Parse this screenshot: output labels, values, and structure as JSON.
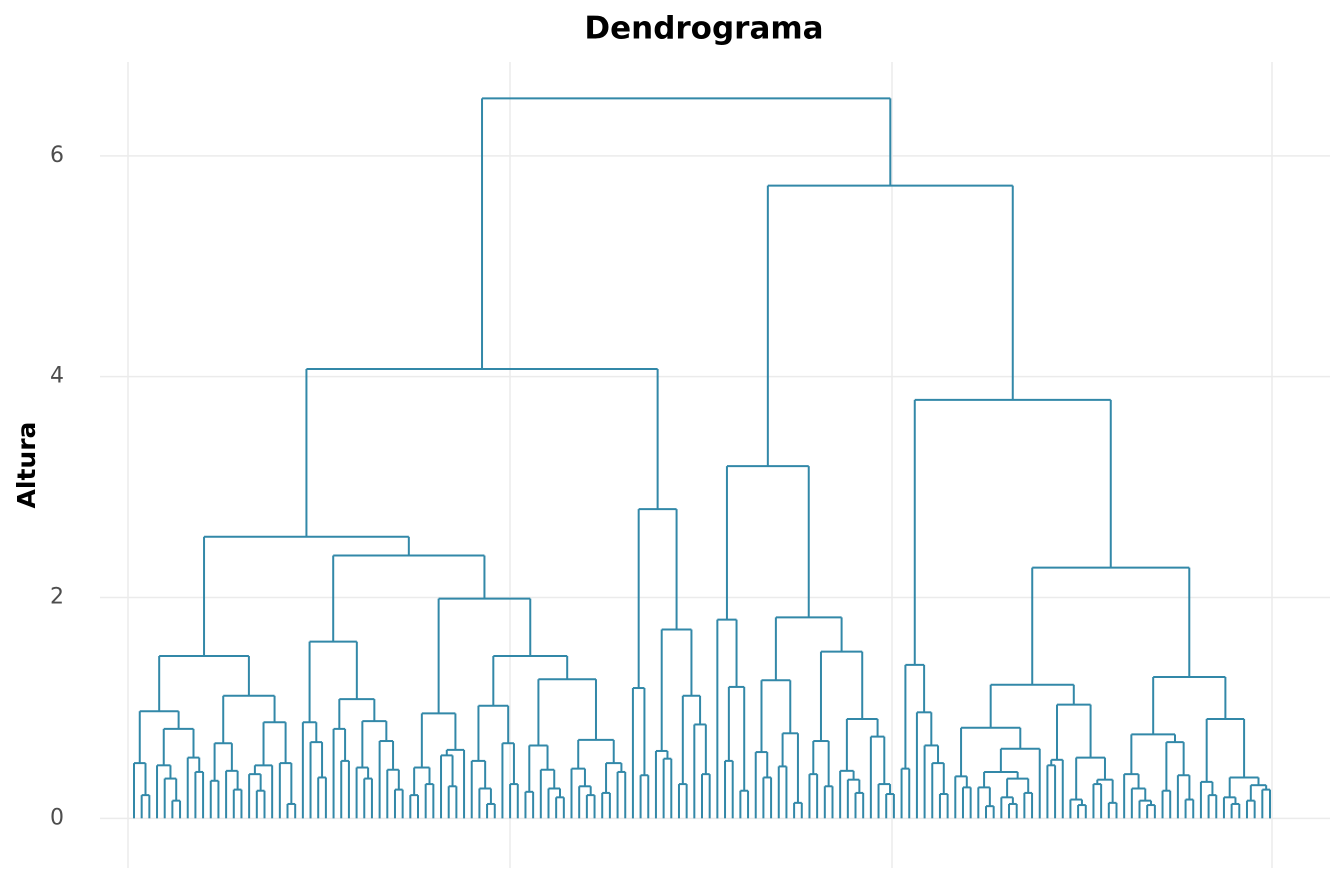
{
  "chart_data": {
    "type": "dendrogram",
    "title": "Dendrograma",
    "y_label": "Altura",
    "color": "#3288a8",
    "ylim": [
      -0.45,
      6.85
    ],
    "yticks": [
      0,
      2,
      4,
      6
    ],
    "grid": true,
    "tree": [
      6.52,
      [
        4.07,
        [
          2.55,
          [
            1.47,
            [
              0.97,
              [
                0.5,
                0,
                [
                  0.21,
                  0,
                  0
                ]
              ],
              [
                0.81,
                [
                  0.48,
                  0,
                  [
                    0.36,
                    0,
                    [
                      0.16,
                      0,
                      0
                    ]
                  ]
                ],
                [
                  0.55,
                  0,
                  [
                    0.42,
                    0,
                    0
                  ]
                ]
              ]
            ],
            [
              1.11,
              [
                0.68,
                [
                  0.34,
                  0,
                  0
                ],
                [
                  0.43,
                  0,
                  [
                    0.26,
                    0,
                    0
                  ]
                ]
              ],
              [
                0.87,
                [
                  0.48,
                  [
                    0.4,
                    0,
                    [
                      0.25,
                      0,
                      0
                    ]
                  ],
                  0
                ],
                [
                  0.5,
                  0,
                  [
                    0.13,
                    0,
                    0
                  ]
                ]
              ]
            ]
          ],
          [
            2.38,
            [
              1.6,
              [
                0.87,
                0,
                [
                  0.69,
                  0,
                  [
                    0.37,
                    0,
                    0
                  ]
                ]
              ],
              [
                1.08,
                [
                  0.81,
                  0,
                  [
                    0.52,
                    0,
                    0
                  ]
                ],
                [
                  0.88,
                  [
                    0.46,
                    0,
                    [
                      0.36,
                      0,
                      0
                    ]
                  ],
                  [
                    0.7,
                    0,
                    [
                      0.44,
                      0,
                      [
                        0.26,
                        0,
                        0
                      ]
                    ]
                  ]
                ]
              ]
            ],
            [
              1.99,
              [
                0.95,
                [
                  0.46,
                  [
                    0.21,
                    0,
                    0
                  ],
                  [
                    0.31,
                    0,
                    0
                  ]
                ],
                [
                  0.62,
                  [
                    0.57,
                    0,
                    [
                      0.29,
                      0,
                      0
                    ]
                  ],
                  0
                ]
              ],
              [
                1.47,
                [
                  1.02,
                  [
                    0.52,
                    0,
                    [
                      0.27,
                      0,
                      [
                        0.13,
                        0,
                        0
                      ]
                    ]
                  ],
                  [
                    0.68,
                    0,
                    [
                      0.31,
                      0,
                      0
                    ]
                  ]
                ],
                [
                  1.26,
                  [
                    0.66,
                    [
                      0.24,
                      0,
                      0
                    ],
                    [
                      0.44,
                      0,
                      [
                        0.27,
                        0,
                        [
                          0.19,
                          0,
                          0
                        ]
                      ]
                    ]
                  ],
                  [
                    0.71,
                    [
                      0.45,
                      0,
                      [
                        0.29,
                        0,
                        [
                          0.21,
                          0,
                          0
                        ]
                      ]
                    ],
                    [
                      0.5,
                      [
                        0.23,
                        0,
                        0
                      ],
                      [
                        0.42,
                        0,
                        0
                      ]
                    ]
                  ]
                ]
              ]
            ]
          ]
        ],
        [
          2.8,
          [
            1.18,
            0,
            [
              0.39,
              0,
              0
            ]
          ],
          [
            1.71,
            [
              0.61,
              0,
              [
                0.54,
                0,
                0
              ]
            ],
            [
              1.11,
              [
                0.31,
                0,
                0
              ],
              [
                0.85,
                0,
                [
                  0.4,
                  0,
                  0
                ]
              ]
            ]
          ]
        ]
      ],
      [
        5.73,
        [
          3.19,
          [
            1.8,
            0,
            [
              1.19,
              [
                0.52,
                0,
                0
              ],
              [
                0.25,
                0,
                0
              ]
            ]
          ],
          [
            1.82,
            [
              1.25,
              [
                0.6,
                0,
                [
                  0.37,
                  0,
                  0
                ]
              ],
              [
                0.77,
                [
                  0.47,
                  0,
                  0
                ],
                [
                  0.14,
                  0,
                  0
                ]
              ]
            ],
            [
              1.51,
              [
                0.7,
                [
                  0.4,
                  0,
                  0
                ],
                [
                  0.29,
                  0,
                  0
                ]
              ],
              [
                0.9,
                [
                  0.43,
                  0,
                  [
                    0.35,
                    0,
                    [
                      0.23,
                      0,
                      0
                    ]
                  ]
                ],
                [
                  0.74,
                  0,
                  [
                    0.31,
                    0,
                    [
                      0.22,
                      0,
                      0
                    ]
                  ]
                ]
              ]
            ]
          ]
        ],
        [
          3.79,
          [
            1.39,
            [
              0.45,
              0,
              0
            ],
            [
              0.96,
              0,
              [
                0.66,
                0,
                [
                  0.5,
                  0,
                  [
                    0.22,
                    0,
                    0
                  ]
                ]
              ]
            ]
          ],
          [
            2.27,
            [
              1.21,
              [
                0.82,
                [
                  0.38,
                  0,
                  [
                    0.28,
                    0,
                    0
                  ]
                ],
                [
                  0.63,
                  [
                    0.42,
                    [
                      0.28,
                      0,
                      [
                        0.11,
                        0,
                        0
                      ]
                    ],
                    [
                      0.36,
                      [
                        0.19,
                        0,
                        [
                          0.13,
                          0,
                          0
                        ]
                      ],
                      [
                        0.23,
                        0,
                        0
                      ]
                    ]
                  ],
                  0
                ]
              ],
              [
                1.03,
                [
                  0.53,
                  [
                    0.48,
                    0,
                    0
                  ],
                  0
                ],
                [
                  0.55,
                  [
                    0.17,
                    0,
                    [
                      0.12,
                      0,
                      0
                    ]
                  ],
                  [
                    0.35,
                    [
                      0.31,
                      0,
                      0
                    ],
                    [
                      0.14,
                      0,
                      0
                    ]
                  ]
                ]
              ]
            ],
            [
              1.28,
              [
                0.76,
                [
                  0.4,
                  0,
                  [
                    0.27,
                    0,
                    [
                      0.16,
                      0,
                      [
                        0.12,
                        0,
                        0
                      ]
                    ]
                  ]
                ],
                [
                  0.69,
                  [
                    0.25,
                    0,
                    0
                  ],
                  [
                    0.39,
                    0,
                    [
                      0.17,
                      0,
                      0
                    ]
                  ]
                ]
              ],
              [
                0.9,
                [
                  0.33,
                  0,
                  [
                    0.21,
                    0,
                    0
                  ]
                ],
                [
                  0.37,
                  [
                    0.19,
                    0,
                    [
                      0.13,
                      0,
                      0
                    ]
                  ],
                  [
                    0.3,
                    [
                      0.16,
                      0,
                      0
                    ],
                    [
                      0.26,
                      0,
                      0
                    ]
                  ]
                ]
              ]
            ]
          ]
        ]
      ]
    ]
  }
}
